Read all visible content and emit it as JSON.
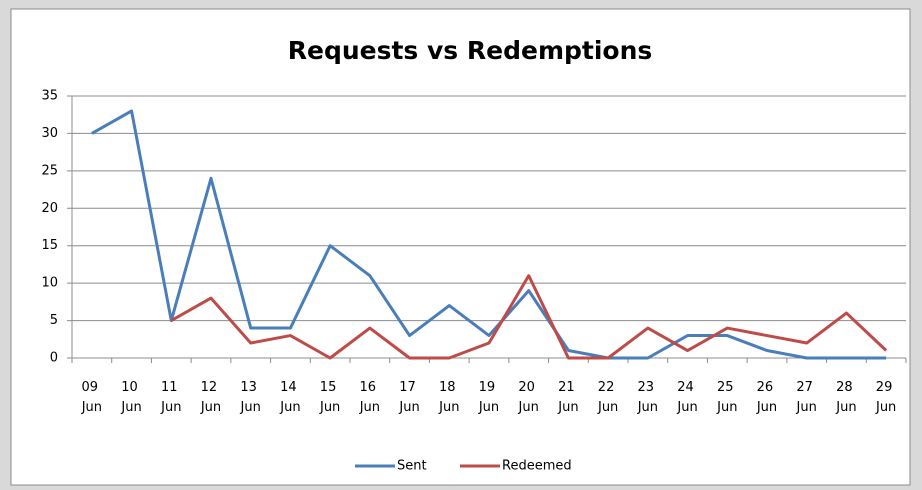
{
  "chart_data": {
    "type": "line",
    "title": "Requests vs Redemptions",
    "categories": [
      "09 Jun",
      "10 Jun",
      "11 Jun",
      "12 Jun",
      "13 Jun",
      "14 Jun",
      "15 Jun",
      "16 Jun",
      "17 Jun",
      "18 Jun",
      "19 Jun",
      "20 Jun",
      "21 Jun",
      "22 Jun",
      "23 Jun",
      "24 Jun",
      "25 Jun",
      "26 Jun",
      "27 Jun",
      "28 Jun",
      "29 Jun"
    ],
    "series": [
      {
        "name": "Sent",
        "color": "#4a7ebb",
        "values": [
          30,
          33,
          5,
          24,
          4,
          4,
          15,
          11,
          3,
          7,
          3,
          9,
          1,
          0,
          0,
          3,
          3,
          1,
          0,
          0,
          0
        ]
      },
      {
        "name": "Redeemed",
        "color": "#be4b48",
        "values": [
          null,
          null,
          5,
          8,
          2,
          3,
          0,
          4,
          0,
          0,
          2,
          11,
          0,
          0,
          4,
          1,
          4,
          3,
          2,
          6,
          1
        ]
      }
    ],
    "ylim": [
      0,
      35
    ],
    "yticks": [
      0,
      5,
      10,
      15,
      20,
      25,
      30,
      35
    ],
    "grid": true,
    "legend": "bottom"
  }
}
